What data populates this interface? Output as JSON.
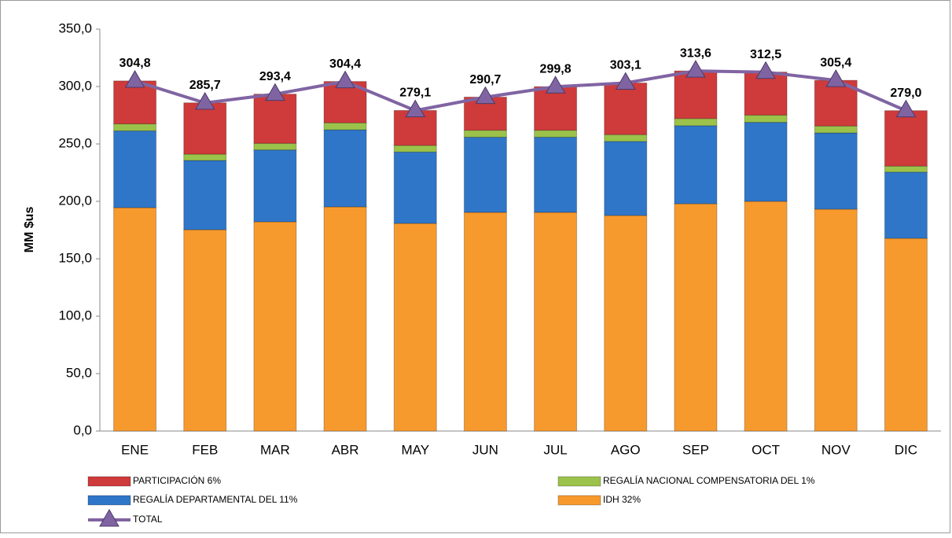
{
  "chart_data": {
    "type": "bar",
    "stacked": true,
    "categories": [
      "ENE",
      "FEB",
      "MAR",
      "ABR",
      "MAY",
      "JUN",
      "JUL",
      "AGO",
      "SEP",
      "OCT",
      "NOV",
      "DIC"
    ],
    "ylabel": "MM $us",
    "ylim": [
      0,
      350
    ],
    "yticks": [
      {
        "value": 0,
        "label": "0,0"
      },
      {
        "value": 50,
        "label": "50,0"
      },
      {
        "value": 100,
        "label": "100,0"
      },
      {
        "value": 150,
        "label": "150,0"
      },
      {
        "value": 200,
        "label": "200,0"
      },
      {
        "value": 250,
        "label": "250,0"
      },
      {
        "value": 300,
        "label": "300,0"
      },
      {
        "value": 350,
        "label": "350,0"
      }
    ],
    "grid": false,
    "legend": "bottom",
    "series": [
      {
        "name": "IDH 32%",
        "color": "#f79a2e",
        "values": [
          194.5,
          175.3,
          182.2,
          195.2,
          180.8,
          190.4,
          190.4,
          187.7,
          197.9,
          200.0,
          193.2,
          167.8
        ]
      },
      {
        "name": "REGALÍA DEPARTAMENTAL DEL 11%",
        "color": "#2f76c8",
        "values": [
          66.9,
          60.3,
          62.6,
          67.1,
          62.2,
          65.5,
          65.5,
          64.5,
          68.0,
          68.8,
          66.4,
          57.7
        ]
      },
      {
        "name": "REGALÍA NACIONAL COMPENSATORIA DEL 1%",
        "color": "#9bc24a",
        "values": [
          6.1,
          5.5,
          5.7,
          6.1,
          5.7,
          6.0,
          6.0,
          5.9,
          6.2,
          6.3,
          6.0,
          5.2
        ]
      },
      {
        "name": "PARTICIPACIÓN 6%",
        "color": "#cf3a3a",
        "values": [
          37.4,
          44.7,
          42.9,
          36.0,
          30.5,
          28.9,
          38.0,
          45.0,
          41.5,
          37.5,
          39.8,
          48.3
        ]
      },
      {
        "name": "TOTAL",
        "type": "line",
        "color": "#8064a2",
        "values": [
          304.8,
          285.7,
          293.4,
          304.4,
          279.1,
          290.7,
          299.8,
          303.1,
          313.6,
          312.5,
          305.4,
          279.0
        ],
        "value_labels": [
          "304,8",
          "285,7",
          "293,4",
          "304,4",
          "279,1",
          "290,7",
          "299,8",
          "303,1",
          "313,6",
          "312,5",
          "305,4",
          "279,0"
        ]
      }
    ]
  }
}
